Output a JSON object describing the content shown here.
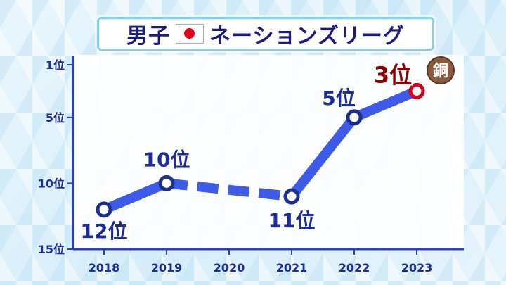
{
  "title": {
    "text_before_flag": "男子",
    "text_after_flag": "ネーションズリーグ"
  },
  "chart_data": {
    "type": "line",
    "title": "男子 ネーションズリーグ",
    "y_axis": {
      "inverted": true,
      "ylim": [
        15,
        1
      ],
      "ticks": [
        "1位",
        "5位",
        "10位",
        "15位"
      ],
      "tick_values": [
        1,
        5,
        10,
        15
      ]
    },
    "categories": [
      "2018",
      "2019",
      "2020",
      "2021",
      "2022",
      "2023"
    ],
    "series": [
      {
        "values": [
          12,
          10,
          null,
          11,
          5,
          3
        ],
        "point_labels": [
          "12位",
          "10位",
          "",
          "11位",
          "5位",
          "3位"
        ],
        "dashed_segment": [
          "2019",
          "2021"
        ]
      }
    ],
    "badge": {
      "text": "銅",
      "category": "2023"
    },
    "colors": {
      "line": "#3d5be8",
      "marker": "#1c2f8f",
      "highlight": "#d0001c",
      "label": "#1a2aa0",
      "highlight_label": "#8a0000",
      "axis": "#2a3fc8"
    },
    "grid": false
  }
}
